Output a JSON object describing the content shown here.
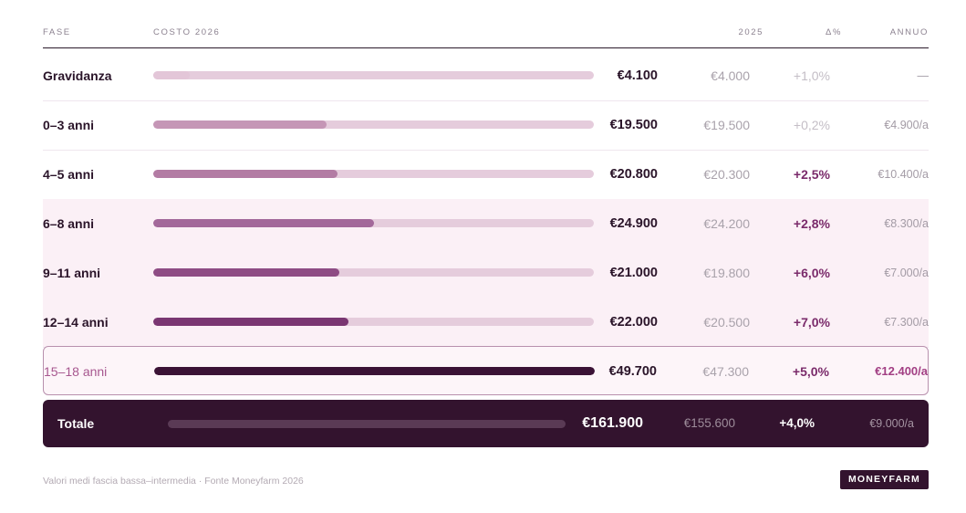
{
  "header": {
    "fase": "FASE",
    "costo": "COSTO 2026",
    "y2025": "2025",
    "delta": "Δ%",
    "annuo": "ANNUO"
  },
  "chart_data": {
    "type": "table",
    "max": 49700,
    "rows": [
      {
        "label": "Gravidanza",
        "value": 4100,
        "cost": "€4.100",
        "y2025": "€4.000",
        "delta": "+1,0%",
        "annuo": "—",
        "color": "#e3c6d8",
        "delta_strong": false
      },
      {
        "label": "0–3 anni",
        "value": 19500,
        "cost": "€19.500",
        "y2025": "€19.500",
        "delta": "+0,2%",
        "annuo": "€4.900/a",
        "color": "#c596b6",
        "delta_strong": false
      },
      {
        "label": "4–5 anni",
        "value": 20800,
        "cost": "€20.800",
        "y2025": "€20.300",
        "delta": "+2,5%",
        "annuo": "€10.400/a",
        "color": "#b37ca4",
        "delta_strong": true
      },
      {
        "label": "6–8 anni",
        "value": 24900,
        "cost": "€24.900",
        "y2025": "€24.200",
        "delta": "+2,8%",
        "annuo": "€8.300/a",
        "color": "#a3689a",
        "delta_strong": true
      },
      {
        "label": "9–11 anni",
        "value": 21000,
        "cost": "€21.000",
        "y2025": "€19.800",
        "delta": "+6,0%",
        "annuo": "€7.000/a",
        "color": "#8e4c84",
        "delta_strong": true
      },
      {
        "label": "12–14 anni",
        "value": 22000,
        "cost": "€22.000",
        "y2025": "€20.500",
        "delta": "+7,0%",
        "annuo": "€7.300/a",
        "color": "#7a3672",
        "delta_strong": true
      },
      {
        "label": "15–18 anni",
        "value": 49700,
        "cost": "€49.700",
        "y2025": "€47.300",
        "delta": "+5,0%",
        "annuo": "€12.400/a",
        "color": "#3b1236",
        "delta_strong": true
      }
    ]
  },
  "total": {
    "label": "Totale",
    "cost": "€161.900",
    "y2025": "€155.600",
    "delta": "+4,0%",
    "annuo": "€9.000/a"
  },
  "footer": {
    "note": "Valori medi fascia bassa–intermedia · Fonte Moneyfarm 2026",
    "brand": "MONEYFARM"
  }
}
